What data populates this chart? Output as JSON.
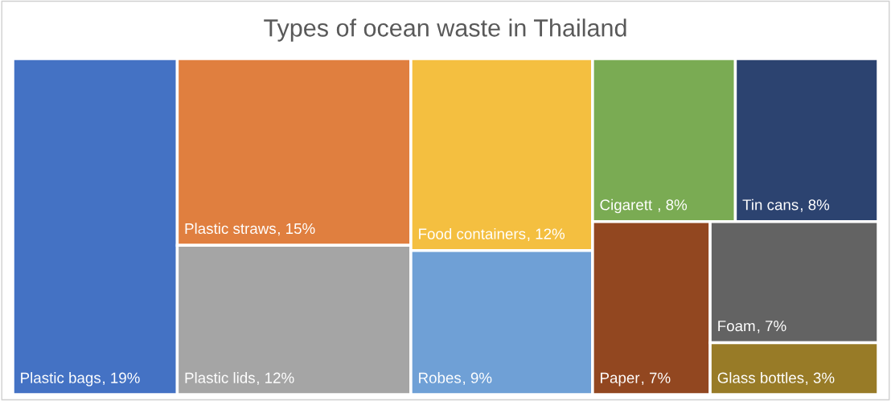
{
  "chart_data": {
    "type": "other",
    "title": "Types of ocean waste in Thailand",
    "categories": [
      "Plastic bags",
      "Plastic straws",
      "Plastic lids",
      "Food containers",
      "Robes",
      "Cigarett ",
      "Tin cans",
      "Paper",
      "Foam",
      "Glass bottles"
    ],
    "values": [
      19,
      15,
      12,
      12,
      9,
      8,
      8,
      7,
      7,
      3
    ],
    "value_labels": [
      ", 19%",
      ", 15%",
      ", 12%",
      ", 12%",
      ", 9%",
      ", 8%",
      ", 8%",
      ", 7%",
      ", 7%",
      ", 3%"
    ],
    "colors": [
      "#4472c4",
      "#e07f3f",
      "#a5a5a5",
      "#f4bf40",
      "#6fa0d6",
      "#7aab53",
      "#2c4370",
      "#924720",
      "#636363",
      "#987b27"
    ]
  }
}
